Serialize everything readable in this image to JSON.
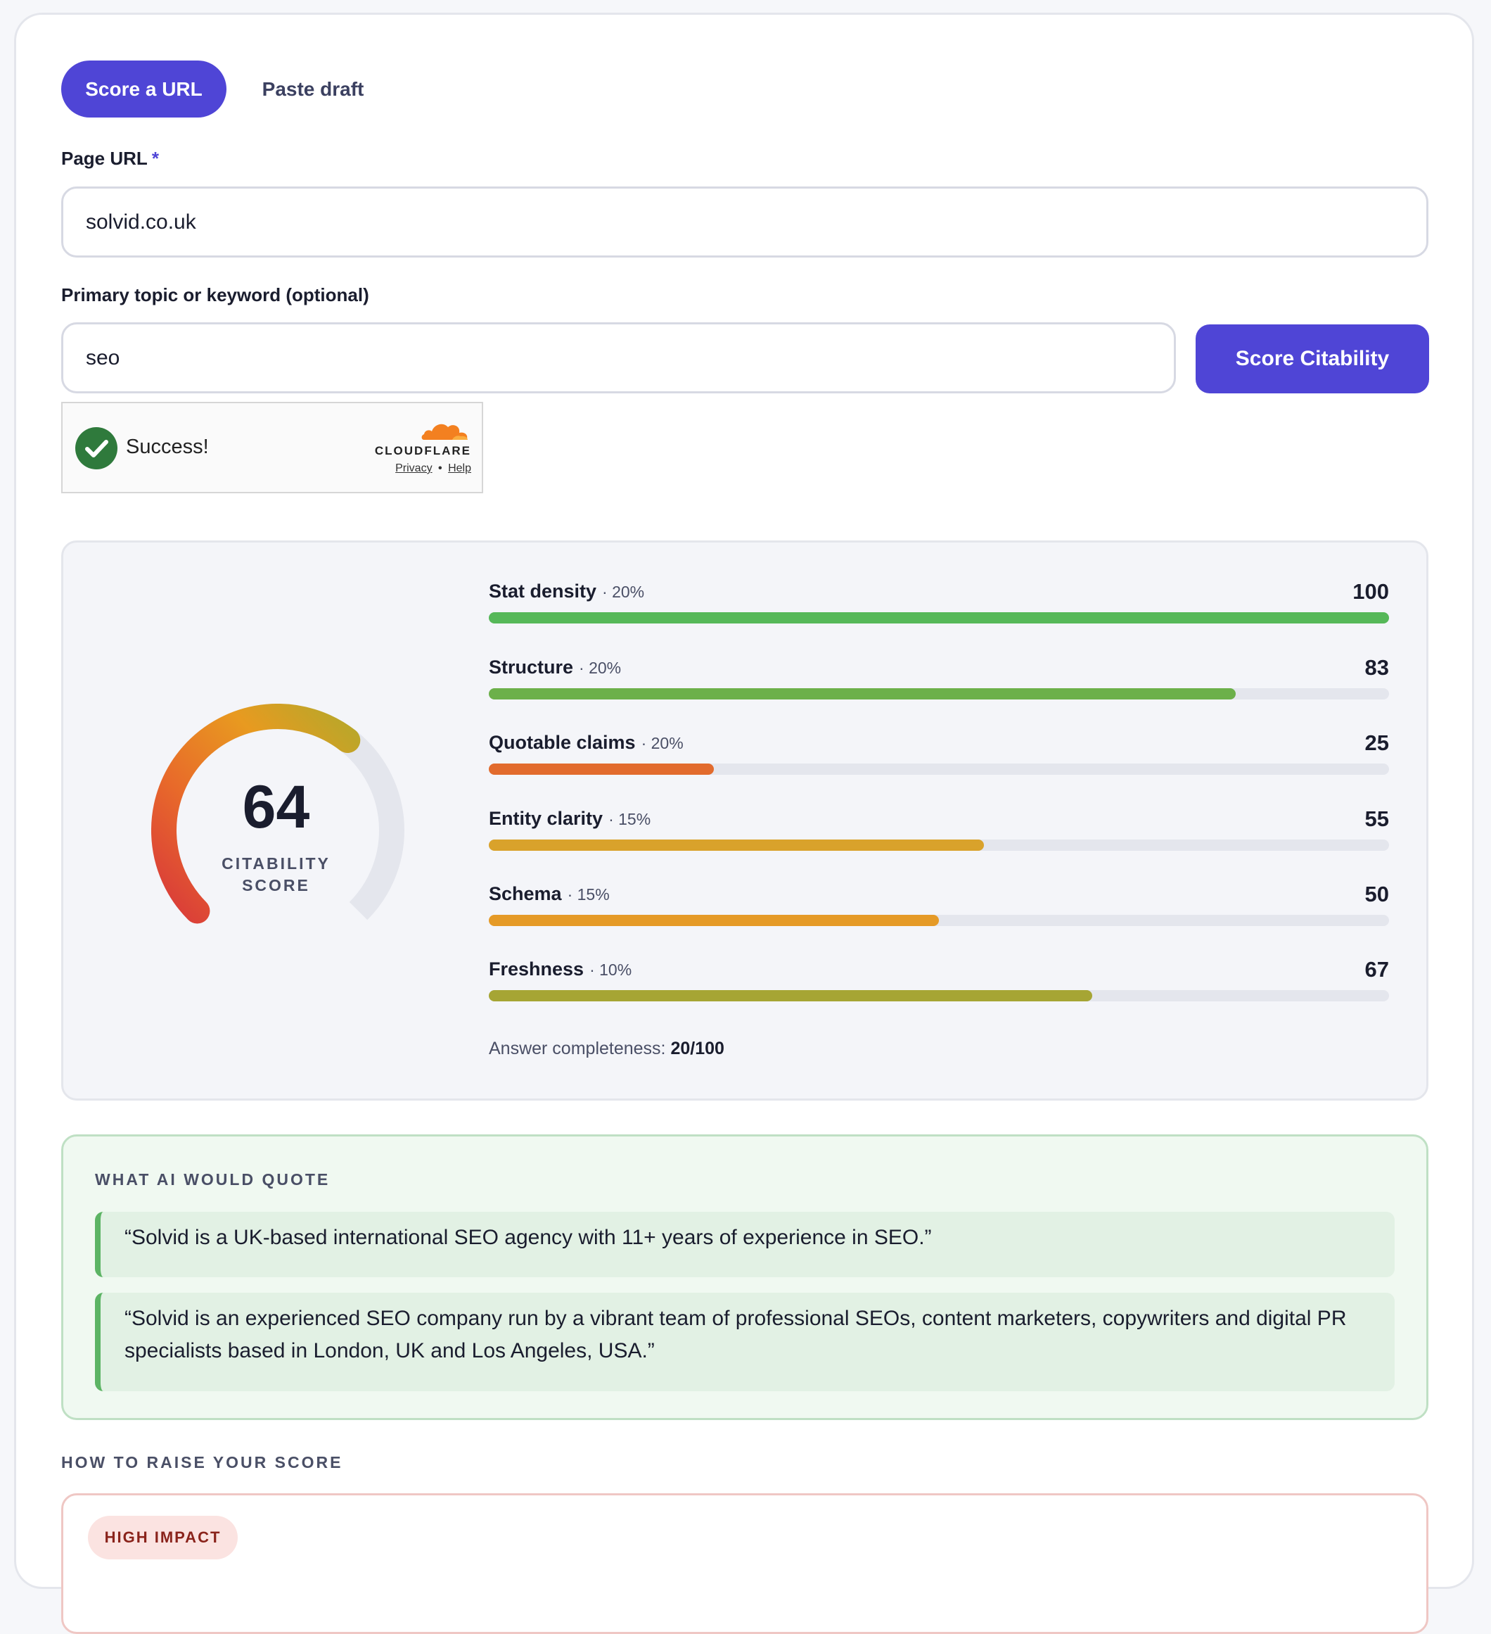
{
  "tabs": {
    "score_url": "Score a URL",
    "paste_draft": "Paste draft"
  },
  "form": {
    "page_url_label": "Page URL",
    "required_mark": "*",
    "page_url_value": "solvid.co.uk",
    "keyword_label": "Primary topic or keyword (optional)",
    "keyword_value": "seo",
    "submit_label": "Score Citability"
  },
  "captcha": {
    "status": "Success!",
    "brand": "CLOUDFLARE",
    "privacy": "Privacy",
    "separator": "•",
    "help": "Help",
    "check_color": "#2f7a3c",
    "cloud_color": "#f38020"
  },
  "score": {
    "value": "64",
    "label_line1": "CITABILITY",
    "label_line2": "SCORE",
    "fraction": 0.64,
    "gauge_colors": [
      "#d93a3a",
      "#e86a2a",
      "#e89a20",
      "#b8a72a"
    ]
  },
  "metrics": [
    {
      "name": "Stat density",
      "weight": "· 20%",
      "value": "100",
      "fraction": 1.0,
      "color": "#56b859"
    },
    {
      "name": "Structure",
      "weight": "· 20%",
      "value": "83",
      "fraction": 0.83,
      "color": "#6cb04a"
    },
    {
      "name": "Quotable claims",
      "weight": "· 20%",
      "value": "25",
      "fraction": 0.25,
      "color": "#e26b2d"
    },
    {
      "name": "Entity clarity",
      "weight": "· 15%",
      "value": "55",
      "fraction": 0.55,
      "color": "#d9a22b"
    },
    {
      "name": "Schema",
      "weight": "· 15%",
      "value": "50",
      "fraction": 0.5,
      "color": "#e59a27"
    },
    {
      "name": "Freshness",
      "weight": "· 10%",
      "value": "67",
      "fraction": 0.67,
      "color": "#a6a534"
    }
  ],
  "completeness": {
    "label": "Answer completeness:",
    "value": "20/100"
  },
  "quotes": {
    "heading": "WHAT AI WOULD QUOTE",
    "items": [
      "“Solvid is a UK-based international SEO agency with 11+ years of experience in SEO.”",
      "“Solvid is an experienced SEO company run by a vibrant team of professional SEOs, content marketers, copywriters and digital PR specialists based in London, UK and Los Angeles, USA.”"
    ]
  },
  "improve": {
    "heading": "HOW TO RAISE YOUR SCORE",
    "impact_badge": "HIGH IMPACT"
  }
}
